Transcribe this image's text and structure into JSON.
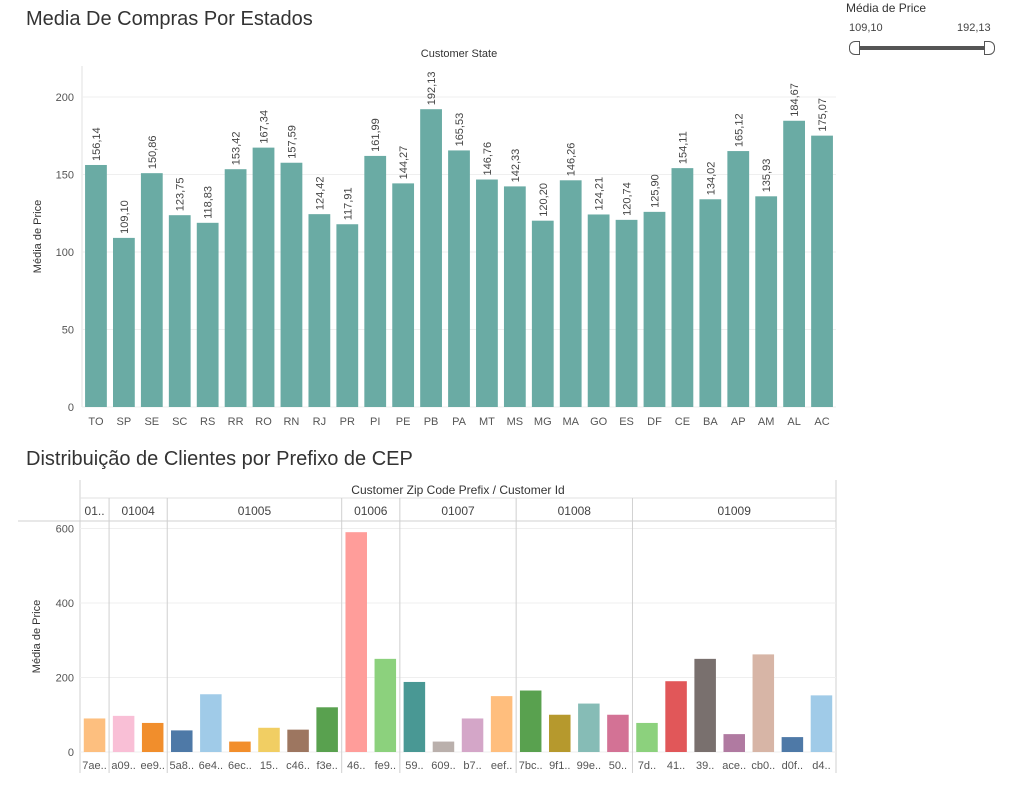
{
  "filter": {
    "title": "Média de Price",
    "min_label": "109,10",
    "max_label": "192,13",
    "range": [
      109.1,
      192.13
    ]
  },
  "chart_data": [
    {
      "type": "bar",
      "title": "Media De Compras Por Estados",
      "header": "Customer State",
      "ylabel": "Média de Price",
      "ylim": [
        0,
        220
      ],
      "yticks": [
        0,
        50,
        100,
        150,
        200
      ],
      "grid": true,
      "color": "#6aaba4",
      "categories": [
        "TO",
        "SP",
        "SE",
        "SC",
        "RS",
        "RR",
        "RO",
        "RN",
        "RJ",
        "PR",
        "PI",
        "PE",
        "PB",
        "PA",
        "MT",
        "MS",
        "MG",
        "MA",
        "GO",
        "ES",
        "DF",
        "CE",
        "BA",
        "AP",
        "AM",
        "AL",
        "AC"
      ],
      "values": [
        156.14,
        109.1,
        150.86,
        123.75,
        118.83,
        153.42,
        167.34,
        157.59,
        124.42,
        117.91,
        161.99,
        144.27,
        192.13,
        165.53,
        146.76,
        142.33,
        120.2,
        146.26,
        124.21,
        120.74,
        125.9,
        154.11,
        134.02,
        165.12,
        135.93,
        184.67,
        175.07
      ],
      "value_labels": [
        "156,14",
        "109,10",
        "150,86",
        "123,75",
        "118,83",
        "153,42",
        "167,34",
        "157,59",
        "124,42",
        "117,91",
        "161,99",
        "144,27",
        "192,13",
        "165,53",
        "146,76",
        "142,33",
        "120,20",
        "146,26",
        "124,21",
        "120,74",
        "125,90",
        "154,11",
        "134,02",
        "165,12",
        "135,93",
        "184,67",
        "175,07"
      ]
    },
    {
      "type": "bar",
      "title": "Distribuição de Clientes por Prefixo de CEP",
      "header": "Customer Zip Code Prefix / Customer Id",
      "ylabel": "Média de Price",
      "ylim": [
        0,
        620
      ],
      "yticks": [
        0,
        200,
        400,
        600
      ],
      "grid": true,
      "groups": [
        {
          "label": "01..",
          "count": 1
        },
        {
          "label": "01004",
          "count": 2
        },
        {
          "label": "01005",
          "count": 6
        },
        {
          "label": "01006",
          "count": 2
        },
        {
          "label": "01007",
          "count": 4
        },
        {
          "label": "01008",
          "count": 4
        },
        {
          "label": "01009",
          "count": 7
        }
      ],
      "categories": [
        "7ae..",
        "a09..",
        "ee9..",
        "5a8..",
        "6e4..",
        "6ec..",
        "15..",
        "c46..",
        "f3e..",
        "46..",
        "fe9..",
        "59..",
        "609..",
        "b7..",
        "eef..",
        "7bc..",
        "9f1..",
        "99e..",
        "50..",
        "7d..",
        "41..",
        "39..",
        "ace..",
        "cb0..",
        "d0f..",
        "d4.."
      ],
      "values": [
        90,
        97,
        78,
        58,
        155,
        28,
        65,
        60,
        120,
        590,
        250,
        188,
        28,
        90,
        150,
        165,
        100,
        130,
        100,
        78,
        190,
        250,
        48,
        262,
        40,
        152
      ],
      "colors": [
        "#fdbf7f",
        "#f9bfd6",
        "#f18e2c",
        "#4e79a7",
        "#a0cbe8",
        "#f28e2b",
        "#f1ce63",
        "#9d7660",
        "#59a14f",
        "#ff9d9a",
        "#8cd17d",
        "#499894",
        "#bab0ac",
        "#d4a6c8",
        "#ffbe7d",
        "#59a14f",
        "#b6992d",
        "#86bcb6",
        "#d37295",
        "#8cd17d",
        "#e15759",
        "#79706e",
        "#b07aa1",
        "#d7b5a6",
        "#4e79a7",
        "#a0cbe8"
      ]
    }
  ]
}
